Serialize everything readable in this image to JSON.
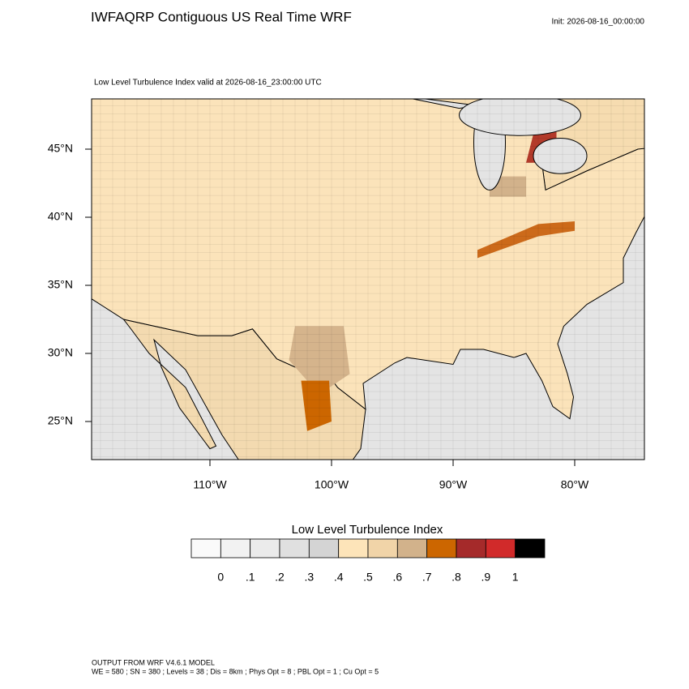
{
  "header": {
    "title": "IWFAQRP Contiguous US Real Time WRF",
    "init": "Init: 2026-08-16_00:00:00",
    "subtitle": "Low Level Turbulence Index valid at 2026-08-16_23:00:00 UTC"
  },
  "map": {
    "lat_labels": [
      "45°N",
      "40°N",
      "35°N",
      "30°N",
      "25°N"
    ],
    "lon_labels": [
      "110°W",
      "100°W",
      "90°W",
      "80°W"
    ]
  },
  "colorbar": {
    "title": "Low Level Turbulence Index",
    "colors": [
      "#fafafa",
      "#f2f2f2",
      "#ebebeb",
      "#e0e0e0",
      "#d4d4d4",
      "#fde4b9",
      "#f1d4a8",
      "#d2b28b",
      "#cc6600",
      "#a52a2a",
      "#d12a2a",
      "#000000"
    ],
    "labels": [
      "0",
      ".1",
      ".2",
      ".3",
      ".4",
      ".5",
      ".6",
      ".7",
      ".8",
      ".9",
      "1"
    ]
  },
  "footer": {
    "line1": "OUTPUT FROM WRF V4.6.1 MODEL",
    "line2": "WE = 580 ; SN = 380 ; Levels = 38 ; Dis = 8km ; Phys Opt = 8 ; PBL Opt = 1 ; Cu Opt = 5"
  }
}
